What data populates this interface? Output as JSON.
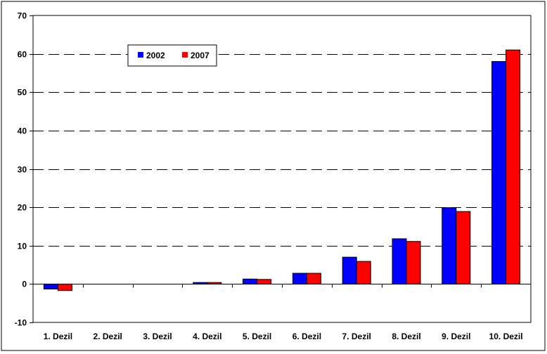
{
  "chart_data": {
    "type": "bar",
    "categories": [
      "1. Dezil",
      "2. Dezil",
      "3. Dezil",
      "4. Dezil",
      "5. Dezil",
      "6. Dezil",
      "7. Dezil",
      "8. Dezil",
      "9. Dezil",
      "10. Dezil"
    ],
    "series": [
      {
        "name": "2002",
        "color": "#0000ff",
        "values": [
          -1.3,
          0,
          0,
          0.4,
          1.3,
          2.8,
          7.0,
          11.8,
          19.9,
          58.0
        ]
      },
      {
        "name": "2007",
        "color": "#ff0000",
        "values": [
          -1.7,
          0,
          0,
          0.4,
          1.2,
          2.8,
          5.9,
          11.1,
          18.9,
          61.0
        ]
      }
    ],
    "title": "",
    "xlabel": "",
    "ylabel": "",
    "ylim": [
      -10,
      70
    ],
    "yticks": [
      "-10",
      "0",
      "10",
      "20",
      "30",
      "40",
      "50",
      "60",
      "70"
    ],
    "grid": "dashed horizontal",
    "legend_position": "top-left"
  }
}
